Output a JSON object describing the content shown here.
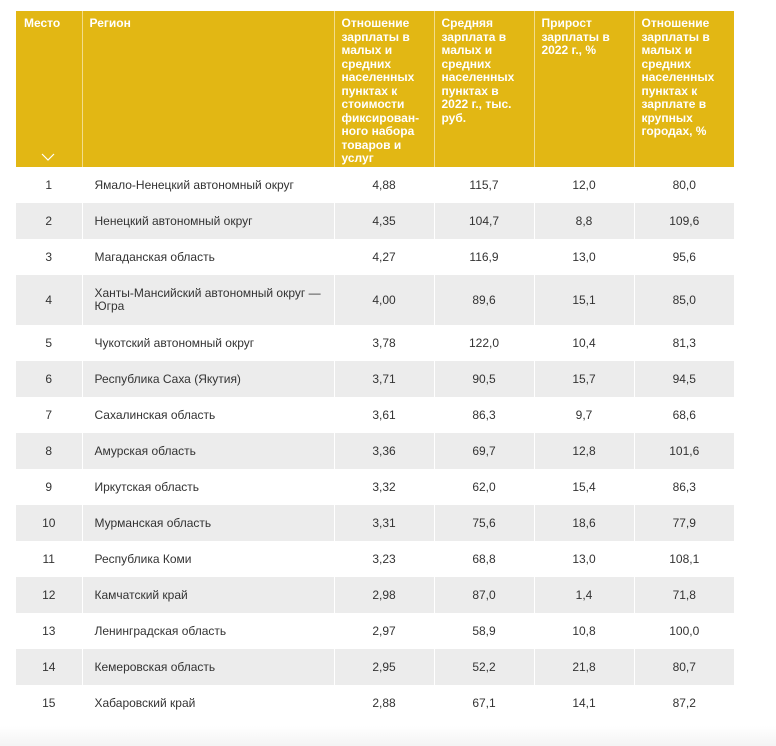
{
  "header": {
    "place": "Место",
    "region": "Регион",
    "ratio_cost": "Отношение зарплаты в малых и средних населенных пунктах к стоимости фиксирован­ного набора товаров и услуг",
    "avg_salary": "Средняя зарплата в малых и средних населенных пунктах в 2022 г., тыс. руб.",
    "growth": "Прирост зарплаты в 2022 г., %",
    "ratio_big": "Отношение зарплаты в малых и средних населенных пунктах к зарплате в крупных городах, %",
    "sort_icon": "chevron-down-icon"
  },
  "rows": [
    {
      "place": "1",
      "region": "Ямало-Ненецкий автономный округ",
      "ratio_cost": "4,88",
      "avg_salary": "115,7",
      "growth": "12,0",
      "ratio_big": "80,0"
    },
    {
      "place": "2",
      "region": "Ненецкий автономный округ",
      "ratio_cost": "4,35",
      "avg_salary": "104,7",
      "growth": "8,8",
      "ratio_big": "109,6"
    },
    {
      "place": "3",
      "region": "Магаданская область",
      "ratio_cost": "4,27",
      "avg_salary": "116,9",
      "growth": "13,0",
      "ratio_big": "95,6"
    },
    {
      "place": "4",
      "region": "Ханты-Мансийский автономный округ — Югра",
      "ratio_cost": "4,00",
      "avg_salary": "89,6",
      "growth": "15,1",
      "ratio_big": "85,0"
    },
    {
      "place": "5",
      "region": "Чукотский автономный округ",
      "ratio_cost": "3,78",
      "avg_salary": "122,0",
      "growth": "10,4",
      "ratio_big": "81,3"
    },
    {
      "place": "6",
      "region": "Республика Саха (Якутия)",
      "ratio_cost": "3,71",
      "avg_salary": "90,5",
      "growth": "15,7",
      "ratio_big": "94,5"
    },
    {
      "place": "7",
      "region": "Сахалинская область",
      "ratio_cost": "3,61",
      "avg_salary": "86,3",
      "growth": "9,7",
      "ratio_big": "68,6"
    },
    {
      "place": "8",
      "region": "Амурская область",
      "ratio_cost": "3,36",
      "avg_salary": "69,7",
      "growth": "12,8",
      "ratio_big": "101,6"
    },
    {
      "place": "9",
      "region": "Иркутская область",
      "ratio_cost": "3,32",
      "avg_salary": "62,0",
      "growth": "15,4",
      "ratio_big": "86,3"
    },
    {
      "place": "10",
      "region": "Мурманская область",
      "ratio_cost": "3,31",
      "avg_salary": "75,6",
      "growth": "18,6",
      "ratio_big": "77,9"
    },
    {
      "place": "11",
      "region": "Республика Коми",
      "ratio_cost": "3,23",
      "avg_salary": "68,8",
      "growth": "13,0",
      "ratio_big": "108,1"
    },
    {
      "place": "12",
      "region": "Камчатский край",
      "ratio_cost": "2,98",
      "avg_salary": "87,0",
      "growth": "1,4",
      "ratio_big": "71,8"
    },
    {
      "place": "13",
      "region": "Ленинградская область",
      "ratio_cost": "2,97",
      "avg_salary": "58,9",
      "growth": "10,8",
      "ratio_big": "100,0"
    },
    {
      "place": "14",
      "region": "Кемеровская область",
      "ratio_cost": "2,95",
      "avg_salary": "52,2",
      "growth": "21,8",
      "ratio_big": "80,7"
    },
    {
      "place": "15",
      "region": "Хабаровский край",
      "ratio_cost": "2,88",
      "avg_salary": "67,1",
      "growth": "14,1",
      "ratio_big": "87,2"
    }
  ],
  "colors": {
    "header_bg": "#e2b714",
    "header_text": "#ffffff",
    "stripe": "#ececec",
    "text": "#333333"
  }
}
